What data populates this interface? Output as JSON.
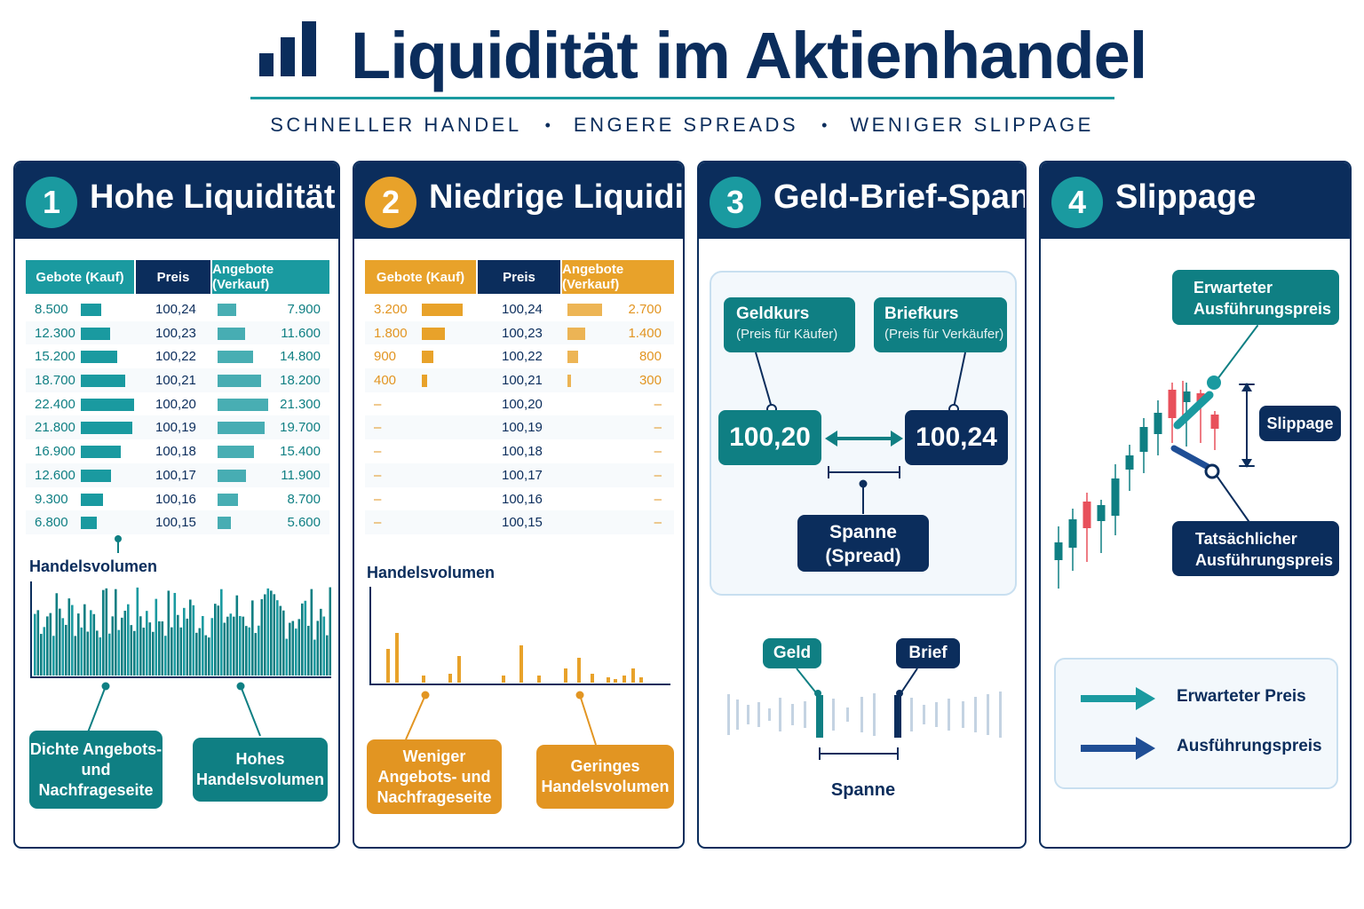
{
  "header": {
    "title": "Liquidität im Aktienhandel",
    "subtitle_items": [
      "SCHNELLER HANDEL",
      "ENGERE SPREADS",
      "WENIGER SLIPPAGE"
    ],
    "bullet": "•"
  },
  "colors": {
    "navy": "#0b2d5c",
    "teal": "#1a9aa0",
    "teal_dark": "#0f7f83",
    "orange": "#e8a22a",
    "red": "#e8505b"
  },
  "panel1": {
    "number": "1",
    "title": "Hohe Liquidität",
    "columns": [
      "Gebote (Kauf)",
      "Preis",
      "Angebote (Verkauf)"
    ],
    "rows": [
      {
        "bid": "8.500",
        "price": "100,24",
        "ask": "7.900"
      },
      {
        "bid": "12.300",
        "price": "100,23",
        "ask": "11.600"
      },
      {
        "bid": "15.200",
        "price": "100,22",
        "ask": "14.800"
      },
      {
        "bid": "18.700",
        "price": "100,21",
        "ask": "18.200"
      },
      {
        "bid": "22.400",
        "price": "100,20",
        "ask": "21.300"
      },
      {
        "bid": "21.800",
        "price": "100,19",
        "ask": "19.700"
      },
      {
        "bid": "16.900",
        "price": "100,18",
        "ask": "15.400"
      },
      {
        "bid": "12.600",
        "price": "100,17",
        "ask": "11.900"
      },
      {
        "bid": "9.300",
        "price": "100,16",
        "ask": "8.700"
      },
      {
        "bid": "6.800",
        "price": "100,15",
        "ask": "5.600"
      }
    ],
    "volume_title": "Handelsvolumen",
    "callout_left": "Dichte Angebots- und Nachfrageseite",
    "callout_right": "Hohes Handelsvolumen"
  },
  "panel2": {
    "number": "2",
    "title": "Niedrige Liquidität",
    "columns": [
      "Gebote (Kauf)",
      "Preis",
      "Angebote (Verkauf)"
    ],
    "rows": [
      {
        "bid": "3.200",
        "price": "100,24",
        "ask": "2.700"
      },
      {
        "bid": "1.800",
        "price": "100,23",
        "ask": "1.400"
      },
      {
        "bid": "900",
        "price": "100,22",
        "ask": "800"
      },
      {
        "bid": "400",
        "price": "100,21",
        "ask": "300"
      },
      {
        "bid": "–",
        "price": "100,20",
        "ask": "–"
      },
      {
        "bid": "–",
        "price": "100,19",
        "ask": "–"
      },
      {
        "bid": "–",
        "price": "100,18",
        "ask": "–"
      },
      {
        "bid": "–",
        "price": "100,17",
        "ask": "–"
      },
      {
        "bid": "–",
        "price": "100,16",
        "ask": "–"
      },
      {
        "bid": "–",
        "price": "100,15",
        "ask": "–"
      }
    ],
    "volume_title": "Handelsvolumen",
    "callout_left": "Weniger Angebots- und Nachfrageseite",
    "callout_right": "Geringes Handelsvolumen"
  },
  "panel3": {
    "number": "3",
    "title": "Geld-Brief-Spanne",
    "bid_label": "Geldkurs",
    "bid_sub": "(Preis für Käufer)",
    "ask_label": "Briefkurs",
    "ask_sub": "(Preis für Verkäufer)",
    "bid_price": "100,20",
    "ask_price": "100,24",
    "spread_label_1": "Spanne",
    "spread_label_2": "(Spread)",
    "geld_tag": "Geld",
    "brief_tag": "Brief",
    "spanne_label": "Spanne"
  },
  "panel4": {
    "number": "4",
    "title": "Slippage",
    "expected_box": "Erwarteter Ausführungspreis",
    "actual_box": "Tatsächlicher Ausführungspreis",
    "slippage_tag": "Slippage",
    "legend_expected": "Erwarteter Preis",
    "legend_execution": "Ausführungspreis"
  }
}
